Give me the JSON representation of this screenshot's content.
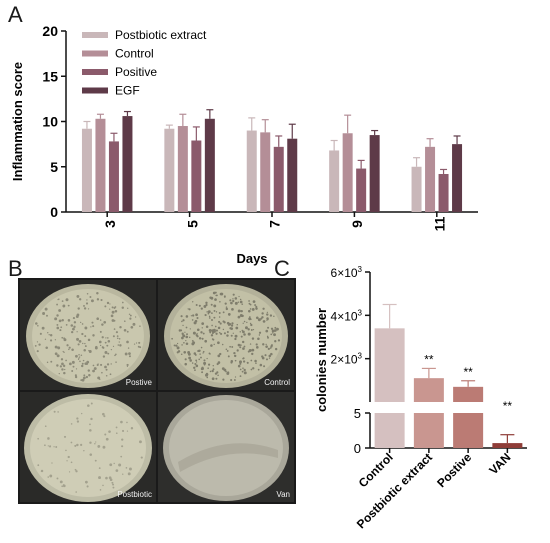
{
  "panels": {
    "a_letter": "A",
    "b_letter": "B",
    "c_letter": "C"
  },
  "chart_data": [
    {
      "type": "bar",
      "panel": "A",
      "ylabel": "Inflammation score",
      "xlabel": "Days",
      "categories": [
        "3",
        "5",
        "7",
        "9",
        "11"
      ],
      "ylim": [
        0,
        20
      ],
      "yticks": [
        0,
        5,
        10,
        15,
        20
      ],
      "legend_position": "top-left",
      "series": [
        {
          "name": "Postbiotic extract",
          "color": "#c9b7b9",
          "values": [
            9.2,
            9.2,
            9.0,
            6.8,
            5.0
          ],
          "errors": [
            0.8,
            0.4,
            1.4,
            1.1,
            1.0
          ]
        },
        {
          "name": "Control",
          "color": "#b48e97",
          "values": [
            10.3,
            9.5,
            8.8,
            8.7,
            7.2
          ],
          "errors": [
            0.5,
            1.3,
            1.4,
            2.0,
            0.9
          ]
        },
        {
          "name": "Positive",
          "color": "#8b5a6b",
          "values": [
            7.8,
            7.9,
            7.2,
            4.8,
            4.2
          ],
          "errors": [
            0.9,
            1.5,
            1.2,
            0.9,
            0.5
          ]
        },
        {
          "name": "EGF",
          "color": "#5e3a48",
          "values": [
            10.6,
            10.3,
            8.1,
            8.5,
            7.5
          ],
          "errors": [
            0.5,
            1.0,
            1.6,
            0.5,
            0.9
          ]
        }
      ]
    },
    {
      "type": "bar",
      "panel": "C",
      "ylabel": "colonies number",
      "categories": [
        "Control",
        "Postbiotic extract",
        "Postive",
        "VAN"
      ],
      "colors": [
        "#d5c0c0",
        "#c99690",
        "#bb7b74",
        "#8f3d38"
      ],
      "values": [
        3400,
        1100,
        700,
        0.7
      ],
      "errors": [
        1100,
        450,
        280,
        1.2
      ],
      "significance": [
        "",
        "**",
        "**",
        "**"
      ],
      "axis_break": true,
      "lower_ylim": [
        0,
        5
      ],
      "upper_ylim": [
        0,
        6000
      ],
      "lower_ticks": [
        "0",
        "5"
      ],
      "upper_ticks": [
        {
          "base": "2×10",
          "exp": "3"
        },
        {
          "base": "4×10",
          "exp": "3"
        },
        {
          "base": "6×10",
          "exp": "3"
        }
      ]
    }
  ],
  "photos": {
    "labels": [
      "Postive",
      "Control",
      "Postbiotic",
      "Van"
    ]
  }
}
